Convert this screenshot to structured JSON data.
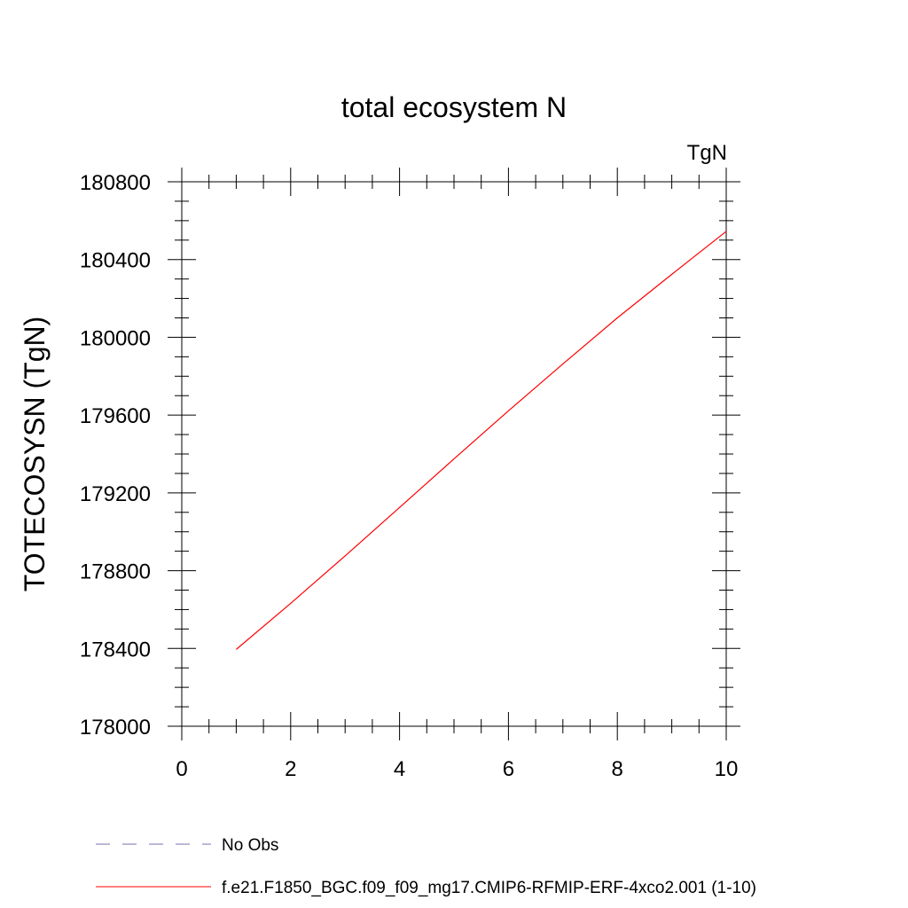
{
  "chart_data": {
    "type": "line",
    "title": "total ecosystem N",
    "units_label": "TgN",
    "xlabel": "",
    "ylabel": "TOTECOSYSN  (TgN)",
    "xlim": [
      0,
      10
    ],
    "ylim": [
      178000,
      180800
    ],
    "x_ticks": [
      0,
      2,
      4,
      6,
      8,
      10
    ],
    "x_tick_labels": [
      "0",
      "2",
      "4",
      "6",
      "8",
      "10"
    ],
    "y_ticks": [
      178000,
      178400,
      178800,
      179200,
      179600,
      180000,
      180400,
      180800
    ],
    "y_tick_labels": [
      "178000",
      "178400",
      "178800",
      "179200",
      "179600",
      "180000",
      "180400",
      "180800"
    ],
    "grid": false,
    "legend_position": "bottom",
    "x": [
      1,
      2,
      3,
      4,
      5,
      6,
      7,
      8,
      9,
      10
    ],
    "series": [
      {
        "name": "f.e21.F1850_BGC.f09_f09_mg17.CMIP6-RFMIP-ERF-4xco2.001 (1-10)",
        "color": "#ff0000",
        "style": "solid",
        "values": [
          178395,
          178632,
          178876,
          179125,
          179375,
          179622,
          179863,
          180100,
          180324,
          180545
        ]
      }
    ],
    "legend": [
      {
        "label": "No Obs",
        "color": "#7a6fb0",
        "style": "dashed"
      },
      {
        "label": "f.e21.F1850_BGC.f09_f09_mg17.CMIP6-RFMIP-ERF-4xco2.001 (1-10)",
        "color": "#ff0000",
        "style": "solid"
      }
    ]
  }
}
